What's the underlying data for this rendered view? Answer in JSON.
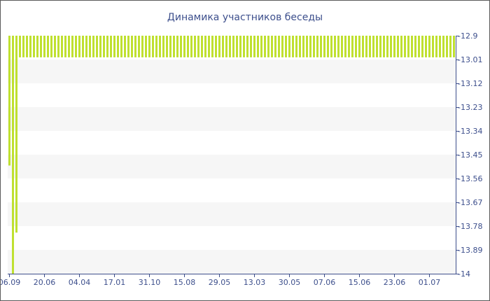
{
  "chart_data": {
    "type": "bar",
    "title": "Динамика участников беседы",
    "xlabel": "",
    "ylabel": "",
    "bar_color": "#bfe030",
    "band_color": "#f6f6f6",
    "axis_color": "#3d4f8c",
    "title_color": "#3d4f8c",
    "y_ticks": [
      "-12.9",
      "-13.01",
      "-13.12",
      "-13.23",
      "-13.34",
      "-13.45",
      "-13.56",
      "-13.67",
      "-13.78",
      "-13.89",
      "-14"
    ],
    "ylim": [
      -14,
      -12.9
    ],
    "y_axis_position": "right",
    "x_tick_labels": [
      "06.09",
      "20.06",
      "04.04",
      "17.01",
      "31.10",
      "15.08",
      "29.05",
      "13.03",
      "30.05",
      "07.06",
      "15.06",
      "23.06",
      "01.07"
    ],
    "x_tick_bar_index": [
      0,
      10,
      20,
      30,
      40,
      50,
      60,
      70,
      80,
      90,
      100,
      110,
      120
    ],
    "values": [
      -13.5,
      -14.0,
      -13.81,
      -13.0,
      -13.0,
      -13.0,
      -13.0,
      -13.0,
      -13.0,
      -13.0,
      -13.0,
      -13.0,
      -13.0,
      -13.0,
      -13.0,
      -13.0,
      -13.0,
      -13.0,
      -13.0,
      -13.0,
      -13.0,
      -13.0,
      -13.0,
      -13.0,
      -13.0,
      -13.0,
      -13.0,
      -13.0,
      -13.0,
      -13.0,
      -13.0,
      -13.0,
      -13.0,
      -13.0,
      -13.0,
      -13.0,
      -13.0,
      -13.0,
      -13.0,
      -13.0,
      -13.0,
      -13.0,
      -13.0,
      -13.0,
      -13.0,
      -13.0,
      -13.0,
      -13.0,
      -13.0,
      -13.0,
      -13.0,
      -13.0,
      -13.0,
      -13.0,
      -13.0,
      -13.0,
      -13.0,
      -13.0,
      -13.0,
      -13.0,
      -13.0,
      -13.0,
      -13.0,
      -13.0,
      -13.0,
      -13.0,
      -13.0,
      -13.0,
      -13.0,
      -13.0,
      -13.0,
      -13.0,
      -13.0,
      -13.0,
      -13.0,
      -13.0,
      -13.0,
      -13.0,
      -13.0,
      -13.0,
      -13.0,
      -13.0,
      -13.0,
      -13.0,
      -13.0,
      -13.0,
      -13.0,
      -13.0,
      -13.0,
      -13.0,
      -13.0,
      -13.0,
      -13.0,
      -13.0,
      -13.0,
      -13.0,
      -13.0,
      -13.0,
      -13.0,
      -13.0,
      -13.0,
      -13.0,
      -13.0,
      -13.0,
      -13.0,
      -13.0,
      -13.0,
      -13.0,
      -13.0,
      -13.0,
      -13.0,
      -13.0,
      -13.0,
      -13.0,
      -13.0,
      -13.0,
      -13.0,
      -13.0,
      -13.0,
      -13.0,
      -13.0,
      -13.0,
      -13.0,
      -13.0,
      -13.0,
      -13.0,
      -13.0,
      -13.0
    ],
    "grid": "alternating horizontal bands",
    "legend": "none"
  }
}
